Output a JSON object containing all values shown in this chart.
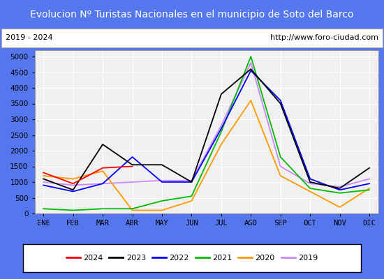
{
  "title": "Evolucion Nº Turistas Nacionales en el municipio de Soto del Barco",
  "subtitle_left": "2019 - 2024",
  "subtitle_right": "http://www.foro-ciudad.com",
  "months": [
    "ENE",
    "FEB",
    "MAR",
    "ABR",
    "MAY",
    "JUN",
    "JUL",
    "AGO",
    "SEP",
    "OCT",
    "NOV",
    "DIC"
  ],
  "series": {
    "2024": {
      "color": "#ff0000",
      "data": [
        1300,
        950,
        1450,
        1500,
        null,
        null,
        null,
        null,
        null,
        null,
        null,
        null
      ]
    },
    "2023": {
      "color": "#000000",
      "data": [
        1100,
        750,
        2200,
        1550,
        1550,
        1000,
        3800,
        4600,
        3500,
        1000,
        800,
        1450
      ]
    },
    "2022": {
      "color": "#0000ff",
      "data": [
        900,
        700,
        950,
        1800,
        1000,
        1000,
        2700,
        4550,
        3600,
        1100,
        750,
        950
      ]
    },
    "2021": {
      "color": "#00bb00",
      "data": [
        150,
        100,
        150,
        150,
        400,
        550,
        2600,
        5000,
        1800,
        800,
        650,
        750
      ]
    },
    "2020": {
      "color": "#ff9900",
      "data": [
        1200,
        1100,
        1350,
        100,
        100,
        400,
        2200,
        3600,
        1200,
        700,
        200,
        800
      ]
    },
    "2019": {
      "color": "#cc88ff",
      "data": [
        1000,
        900,
        950,
        1000,
        1050,
        1050,
        2800,
        4800,
        1500,
        950,
        850,
        1100
      ]
    }
  },
  "ylim": [
    0,
    5200
  ],
  "yticks": [
    0,
    500,
    1000,
    1500,
    2000,
    2500,
    3000,
    3500,
    4000,
    4500,
    5000
  ],
  "title_fontsize": 10,
  "title_bg_color": "#5577ee",
  "title_text_color": "#ffffff",
  "plot_bg_color": "#f0f0f0",
  "grid_color": "#ffffff",
  "border_color": "#5577ee",
  "legend_order": [
    "2024",
    "2023",
    "2022",
    "2021",
    "2020",
    "2019"
  ]
}
